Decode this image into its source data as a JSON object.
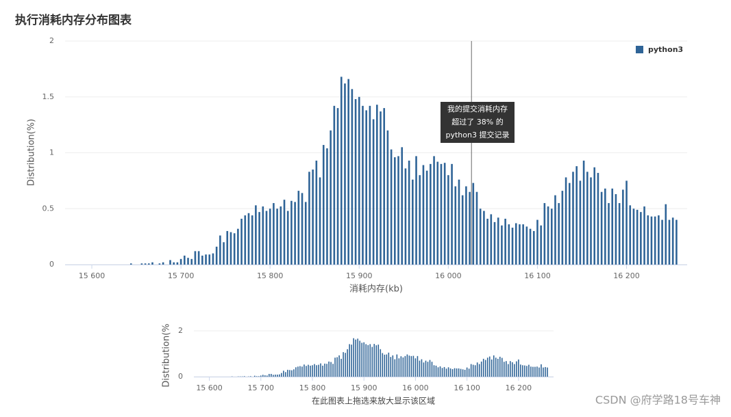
{
  "chart_data": {
    "type": "bar",
    "title": "执行消耗内存分布图表",
    "x_label": "消耗内存(kb)",
    "y_label": "Distribution(%)",
    "xlim": [
      15570,
      16268
    ],
    "ylim": [
      0,
      2
    ],
    "xticks": [
      {
        "value": 15600,
        "label": "15 600"
      },
      {
        "value": 15700,
        "label": "15 700"
      },
      {
        "value": 15800,
        "label": "15 800"
      },
      {
        "value": 15900,
        "label": "15 900"
      },
      {
        "value": 16000,
        "label": "16 000"
      },
      {
        "value": 16100,
        "label": "16 100"
      },
      {
        "value": 16200,
        "label": "16 200"
      }
    ],
    "yticks": [
      0,
      0.5,
      1,
      1.5,
      2
    ],
    "grid": true,
    "legend": "top-right",
    "annotation": {
      "x": 16026,
      "lines": [
        "我的提交消耗内存",
        "超过了 38% 的",
        "python3 提交记录"
      ]
    },
    "x": [
      15644,
      15648,
      15652,
      15656,
      15660,
      15664,
      15668,
      15672,
      15676,
      15680,
      15684,
      15688,
      15692,
      15696,
      15700,
      15704,
      15708,
      15712,
      15716,
      15720,
      15724,
      15728,
      15732,
      15736,
      15740,
      15744,
      15748,
      15752,
      15756,
      15760,
      15764,
      15768,
      15772,
      15776,
      15780,
      15784,
      15788,
      15792,
      15796,
      15800,
      15804,
      15808,
      15812,
      15816,
      15820,
      15824,
      15828,
      15832,
      15836,
      15840,
      15844,
      15848,
      15852,
      15856,
      15860,
      15864,
      15868,
      15872,
      15876,
      15880,
      15884,
      15888,
      15892,
      15896,
      15900,
      15904,
      15908,
      15912,
      15916,
      15920,
      15924,
      15928,
      15932,
      15936,
      15940,
      15944,
      15948,
      15952,
      15956,
      15960,
      15964,
      15968,
      15972,
      15976,
      15980,
      15984,
      15988,
      15992,
      15996,
      16000,
      16004,
      16008,
      16012,
      16016,
      16020,
      16024,
      16028,
      16032,
      16036,
      16040,
      16044,
      16048,
      16052,
      16056,
      16060,
      16064,
      16068,
      16072,
      16076,
      16080,
      16084,
      16088,
      16092,
      16096,
      16100,
      16104,
      16108,
      16112,
      16116,
      16120,
      16124,
      16128,
      16132,
      16136,
      16140,
      16144,
      16148,
      16152,
      16156,
      16160,
      16164,
      16168,
      16172,
      16176,
      16180,
      16184,
      16188,
      16192,
      16196,
      16200,
      16204,
      16208,
      16212,
      16216,
      16220,
      16224,
      16228,
      16232,
      16236,
      16240,
      16244,
      16248,
      16252,
      16256
    ],
    "series": [
      {
        "name": "python3",
        "color": "#2f6497",
        "values": [
          0.01,
          0,
          0,
          0.01,
          0.01,
          0.01,
          0.02,
          0,
          0.01,
          0.02,
          0,
          0.04,
          0.02,
          0.02,
          0.05,
          0.08,
          0.06,
          0.05,
          0.12,
          0.12,
          0.08,
          0.09,
          0.09,
          0.1,
          0.16,
          0.26,
          0.2,
          0.3,
          0.29,
          0.28,
          0.32,
          0.41,
          0.44,
          0.46,
          0.44,
          0.53,
          0.47,
          0.52,
          0.48,
          0.5,
          0.55,
          0.5,
          0.52,
          0.58,
          0.48,
          0.57,
          0.56,
          0.66,
          0.64,
          0.56,
          0.83,
          0.85,
          0.93,
          0.78,
          1.07,
          1.04,
          1.2,
          1.42,
          1.4,
          1.68,
          1.62,
          1.66,
          1.57,
          1.48,
          1.5,
          1.42,
          1.38,
          1.42,
          1.3,
          1.43,
          1.37,
          1.4,
          1.2,
          1.03,
          0.96,
          0.97,
          1.05,
          0.86,
          0.93,
          0.76,
          0.97,
          0.8,
          0.89,
          0.84,
          0.9,
          0.97,
          0.92,
          0.9,
          0.91,
          0.8,
          0.9,
          0.7,
          0.76,
          0.62,
          0.7,
          0.65,
          0.73,
          0.65,
          0.5,
          0.48,
          0.41,
          0.45,
          0.38,
          0.42,
          0.35,
          0.41,
          0.36,
          0.33,
          0.37,
          0.36,
          0.36,
          0.34,
          0.32,
          0.3,
          0.4,
          0.35,
          0.55,
          0.52,
          0.5,
          0.62,
          0.55,
          0.66,
          0.78,
          0.73,
          0.83,
          0.88,
          0.75,
          0.93,
          0.83,
          0.78,
          0.87,
          0.82,
          0.65,
          0.68,
          0.55,
          0.68,
          0.63,
          0.55,
          0.67,
          0.75,
          0.53,
          0.5,
          0.49,
          0.47,
          0.52,
          0.44,
          0.43,
          0.43,
          0.44,
          0.4,
          0.54,
          0.4,
          0.42,
          0.4
        ]
      }
    ],
    "navigator": {
      "y_label": "Distribution(%",
      "caption": "在此图表上拖选来放大显示该区域",
      "yticks": [
        0,
        2
      ]
    }
  },
  "watermark": "CSDN @府学路18号车神"
}
